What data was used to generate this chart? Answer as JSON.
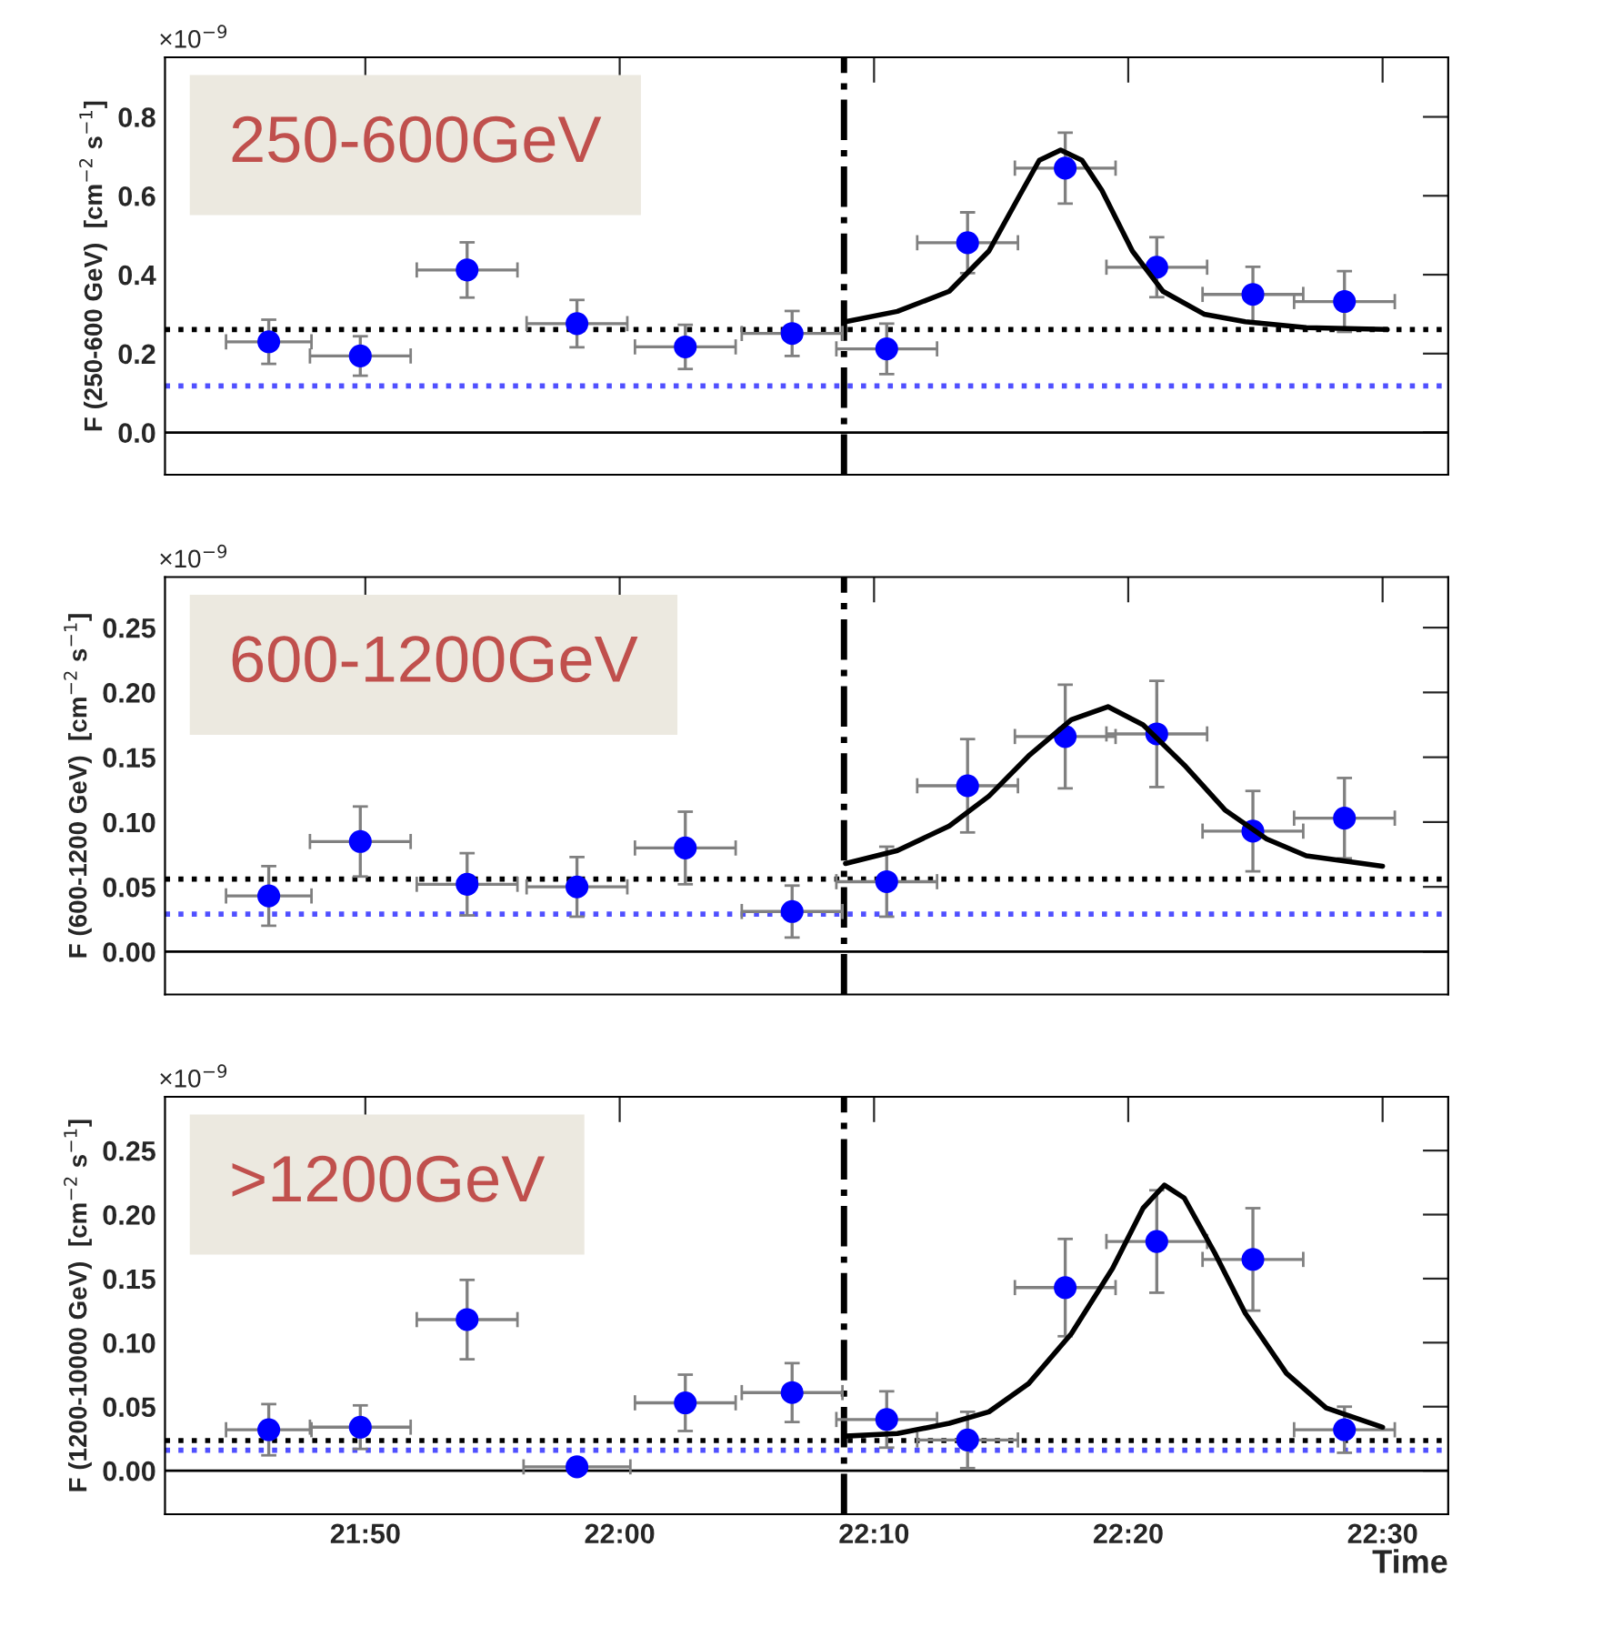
{
  "chart_data": [
    {
      "type": "scatter",
      "ylabel": "F (250-600 GeV)  [cm$^{−2}$ s$^{−1}$]",
      "annotations": [
        "250-600GeV",
        "×10$^{−9}$"
      ],
      "xlim": [
        21.702,
        22.543
      ],
      "xticks": [
        {
          "value": 21.8333,
          "label": null
        },
        {
          "value": 22.0,
          "label": null
        },
        {
          "value": 22.1667,
          "label": null
        },
        {
          "value": 22.3333,
          "label": null
        },
        {
          "value": 22.5,
          "label": null
        }
      ],
      "ylim": [
        -0.107,
        0.951
      ],
      "yticks": [
        {
          "value": 0.0,
          "label": "0.0"
        },
        {
          "value": 0.2,
          "label": "0.2"
        },
        {
          "value": 0.4,
          "label": "0.4"
        },
        {
          "value": 0.6,
          "label": "0.6"
        },
        {
          "value": 0.8,
          "label": "0.8"
        }
      ],
      "tick_labels": "y",
      "grid": false,
      "legend": false,
      "series": [
        {
          "color": "#0000ff",
          "marker": "circle",
          "x": [
            21.77,
            21.83,
            21.9,
            21.972,
            22.043,
            22.113,
            22.175,
            22.228,
            22.292,
            22.352,
            22.415,
            22.475
          ],
          "values": [
            0.23,
            0.194,
            0.412,
            0.276,
            0.217,
            0.251,
            0.212,
            0.481,
            0.67,
            0.419,
            0.35,
            0.332
          ],
          "errors": [
            0.056,
            0.05,
            0.07,
            0.06,
            0.056,
            0.057,
            0.064,
            0.077,
            0.09,
            0.076,
            0.07,
            0.077
          ],
          "xerrors": [
            0.028,
            0.033,
            0.033,
            0.033,
            0.033,
            0.033,
            0.033,
            0.033,
            0.033,
            0.033,
            0.033,
            0.033
          ]
        },
        {
          "type": "line",
          "color": "#000000",
          "marker": "none",
          "line_style": "solid",
          "x": [
            22.148,
            22.182,
            22.216,
            22.242,
            22.262,
            22.275,
            22.289,
            22.303,
            22.316,
            22.336,
            22.356,
            22.383,
            22.41,
            22.45,
            22.503
          ],
          "values": [
            0.281,
            0.307,
            0.358,
            0.46,
            0.6,
            0.69,
            0.716,
            0.69,
            0.614,
            0.46,
            0.358,
            0.3,
            0.281,
            0.266,
            0.261
          ]
        }
      ],
      "ref_lines": [
        {
          "axis": "y",
          "value": 0.261,
          "color": "#000000",
          "line_style": "dotted"
        },
        {
          "axis": "y",
          "value": 0.118,
          "color": "#5050ff",
          "line_style": "dotted"
        },
        {
          "axis": "y",
          "value": 0.0,
          "color": "#000000",
          "line_style": "solid"
        },
        {
          "axis": "x",
          "value": 22.147,
          "color": "#000000",
          "line_style": "dashdot"
        }
      ]
    },
    {
      "type": "scatter",
      "ylabel": "F (600-1200 GeV)  [cm$^{−2}$ s$^{−1}$]",
      "annotations": [
        "600-1200GeV",
        "×10$^{−9}$"
      ],
      "xlim": [
        21.702,
        22.543
      ],
      "xticks": [
        {
          "value": 21.8333,
          "label": null
        },
        {
          "value": 22.0,
          "label": null
        },
        {
          "value": 22.1667,
          "label": null
        },
        {
          "value": 22.3333,
          "label": null
        },
        {
          "value": 22.5,
          "label": null
        }
      ],
      "ylim": [
        -0.033,
        0.289
      ],
      "yticks": [
        {
          "value": 0.0,
          "label": "0.00"
        },
        {
          "value": 0.05,
          "label": "0.05"
        },
        {
          "value": 0.1,
          "label": "0.10"
        },
        {
          "value": 0.15,
          "label": "0.15"
        },
        {
          "value": 0.2,
          "label": "0.20"
        },
        {
          "value": 0.25,
          "label": "0.25"
        }
      ],
      "tick_labels": "y",
      "grid": false,
      "legend": false,
      "series": [
        {
          "color": "#0000ff",
          "marker": "circle",
          "x": [
            21.77,
            21.83,
            21.9,
            21.972,
            22.043,
            22.113,
            22.175,
            22.228,
            22.292,
            22.352,
            22.415,
            22.475
          ],
          "values": [
            0.043,
            0.085,
            0.052,
            0.05,
            0.08,
            0.031,
            0.054,
            0.128,
            0.166,
            0.168,
            0.093,
            0.103
          ],
          "errors": [
            0.023,
            0.027,
            0.024,
            0.023,
            0.028,
            0.02,
            0.027,
            0.036,
            0.04,
            0.041,
            0.031,
            0.031
          ],
          "xerrors": [
            0.028,
            0.033,
            0.033,
            0.033,
            0.033,
            0.033,
            0.033,
            0.033,
            0.033,
            0.033,
            0.033,
            0.033
          ]
        },
        {
          "type": "line",
          "color": "#000000",
          "marker": "none",
          "line_style": "solid",
          "x": [
            22.148,
            22.182,
            22.216,
            22.242,
            22.268,
            22.296,
            22.32,
            22.343,
            22.37,
            22.397,
            22.424,
            22.45,
            22.5
          ],
          "values": [
            0.068,
            0.078,
            0.097,
            0.12,
            0.151,
            0.179,
            0.189,
            0.175,
            0.144,
            0.109,
            0.087,
            0.074,
            0.066
          ]
        }
      ],
      "ref_lines": [
        {
          "axis": "y",
          "value": 0.056,
          "color": "#000000",
          "line_style": "dotted"
        },
        {
          "axis": "y",
          "value": 0.029,
          "color": "#5050ff",
          "line_style": "dotted"
        },
        {
          "axis": "y",
          "value": 0.0,
          "color": "#000000",
          "line_style": "solid"
        },
        {
          "axis": "x",
          "value": 22.147,
          "color": "#000000",
          "line_style": "dashdot"
        }
      ]
    },
    {
      "type": "scatter",
      "ylabel": "F (1200-10000 GeV)  [cm$^{−2}$ s$^{−1}$]",
      "xlabel": "Time",
      "annotations": [
        ">1200GeV",
        "×10$^{−9}$"
      ],
      "xlim": [
        21.702,
        22.543
      ],
      "xticks": [
        {
          "value": 21.8333,
          "label": "21:50"
        },
        {
          "value": 22.0,
          "label": "22:00"
        },
        {
          "value": 22.1667,
          "label": "22:10"
        },
        {
          "value": 22.3333,
          "label": "22:20"
        },
        {
          "value": 22.5,
          "label": "22:30"
        }
      ],
      "ylim": [
        -0.034,
        0.292
      ],
      "yticks": [
        {
          "value": 0.0,
          "label": "0.00"
        },
        {
          "value": 0.05,
          "label": "0.05"
        },
        {
          "value": 0.1,
          "label": "0.10"
        },
        {
          "value": 0.15,
          "label": "0.15"
        },
        {
          "value": 0.2,
          "label": "0.20"
        },
        {
          "value": 0.25,
          "label": "0.25"
        }
      ],
      "grid": false,
      "legend": false,
      "series": [
        {
          "color": "#0000ff",
          "marker": "circle",
          "x": [
            21.77,
            21.83,
            21.9,
            21.972,
            22.043,
            22.113,
            22.175,
            22.228,
            22.292,
            22.352,
            22.415,
            22.475
          ],
          "values": [
            0.032,
            0.034,
            0.118,
            0.003,
            0.053,
            0.061,
            0.04,
            0.024,
            0.143,
            0.179,
            0.165,
            0.032
          ],
          "errors": [
            0.02,
            0.017,
            0.031,
            null,
            0.022,
            0.023,
            0.022,
            0.022,
            0.038,
            0.04,
            0.04,
            0.018
          ],
          "xerrors": [
            0.028,
            0.033,
            0.033,
            0.035,
            0.033,
            0.033,
            0.033,
            0.033,
            0.033,
            0.033,
            0.033,
            0.033
          ]
        },
        {
          "type": "line",
          "color": "#000000",
          "marker": "none",
          "line_style": "solid",
          "x": [
            22.148,
            22.182,
            22.216,
            22.242,
            22.268,
            22.296,
            22.323,
            22.343,
            22.357,
            22.37,
            22.39,
            22.41,
            22.437,
            22.463,
            22.5
          ],
          "values": [
            0.027,
            0.029,
            0.037,
            0.046,
            0.068,
            0.107,
            0.158,
            0.205,
            0.223,
            0.213,
            0.17,
            0.123,
            0.076,
            0.049,
            0.034
          ]
        }
      ],
      "ref_lines": [
        {
          "axis": "y",
          "value": 0.0235,
          "color": "#000000",
          "line_style": "dotted"
        },
        {
          "axis": "y",
          "value": 0.016,
          "color": "#5050ff",
          "line_style": "dotted"
        },
        {
          "axis": "y",
          "value": 0.0,
          "color": "#000000",
          "line_style": "solid"
        },
        {
          "axis": "x",
          "value": 22.147,
          "color": "#000000",
          "line_style": "dashdot"
        }
      ]
    }
  ]
}
